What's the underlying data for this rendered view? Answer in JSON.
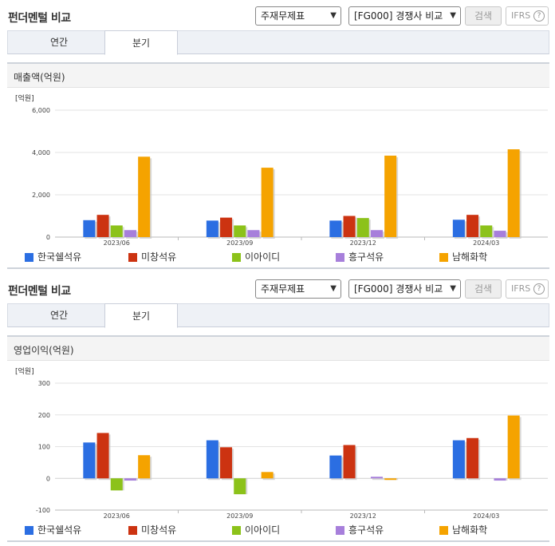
{
  "panels": [
    {
      "header": {
        "title": "펀더멘털 비교",
        "select_statement": "주재무제표",
        "select_compare": "[FG000] 경쟁사 비교",
        "search_label": "검색",
        "ifrs_label": "IFRS",
        "help_glyph": "?"
      },
      "tabs": [
        {
          "label": "연간"
        },
        {
          "label": "분기"
        }
      ],
      "active_tab": "분기",
      "section_title": "매출액(억원)"
    },
    {
      "header": {
        "title": "펀더멘털 비교",
        "select_statement": "주재무제표",
        "select_compare": "[FG000] 경쟁사 비교",
        "search_label": "검색",
        "ifrs_label": "IFRS",
        "help_glyph": "?"
      },
      "tabs": [
        {
          "label": "연간"
        },
        {
          "label": "분기"
        }
      ],
      "active_tab": "분기",
      "section_title": "영업이익(억원)"
    }
  ],
  "legend": [
    {
      "name": "한국쉘석유",
      "color": "#2b6ee2"
    },
    {
      "name": "미창석유",
      "color": "#cc3311"
    },
    {
      "name": "이아이디",
      "color": "#8cc21a"
    },
    {
      "name": "흥구석유",
      "color": "#a77fdb"
    },
    {
      "name": "남해화학",
      "color": "#f5a300"
    }
  ],
  "chart_data": [
    {
      "type": "bar",
      "title": "매출액(억원)",
      "unit_label": "[억원]",
      "categories": [
        "2023/06",
        "2023/09",
        "2023/12",
        "2024/03"
      ],
      "ylim": [
        0,
        6000
      ],
      "yticks": [
        0,
        2000,
        4000,
        6000
      ],
      "ytick_labels": [
        "0",
        "2,000",
        "4,000",
        "6,000"
      ],
      "grid": true,
      "legend_position": "bottom",
      "series": [
        {
          "name": "한국쉘석유",
          "color": "#2b6ee2",
          "values": [
            800,
            780,
            780,
            820
          ]
        },
        {
          "name": "미창석유",
          "color": "#cc3311",
          "values": [
            1050,
            920,
            1000,
            1050
          ]
        },
        {
          "name": "이아이디",
          "color": "#8cc21a",
          "values": [
            550,
            550,
            900,
            550
          ]
        },
        {
          "name": "흥구석유",
          "color": "#a77fdb",
          "values": [
            330,
            330,
            330,
            300
          ]
        },
        {
          "name": "남해화학",
          "color": "#f5a300",
          "values": [
            3800,
            3280,
            3850,
            4150
          ]
        }
      ]
    },
    {
      "type": "bar",
      "title": "영업이익(억원)",
      "unit_label": "[억원]",
      "categories": [
        "2023/06",
        "2023/09",
        "2023/12",
        "2024/03"
      ],
      "ylim": [
        -100,
        300
      ],
      "yticks": [
        -100,
        0,
        100,
        200,
        300
      ],
      "ytick_labels": [
        "-100",
        "0",
        "100",
        "200",
        "300"
      ],
      "grid": true,
      "legend_position": "bottom",
      "series": [
        {
          "name": "한국쉘석유",
          "color": "#2b6ee2",
          "values": [
            113,
            120,
            72,
            120
          ]
        },
        {
          "name": "미창석유",
          "color": "#cc3311",
          "values": [
            143,
            98,
            105,
            127
          ]
        },
        {
          "name": "이아이디",
          "color": "#8cc21a",
          "values": [
            -38,
            -50,
            0,
            0
          ]
        },
        {
          "name": "흥구석유",
          "color": "#a77fdb",
          "values": [
            -7,
            0,
            5,
            -7
          ]
        },
        {
          "name": "남해화학",
          "color": "#f5a300",
          "values": [
            73,
            20,
            -5,
            198
          ]
        }
      ]
    }
  ]
}
